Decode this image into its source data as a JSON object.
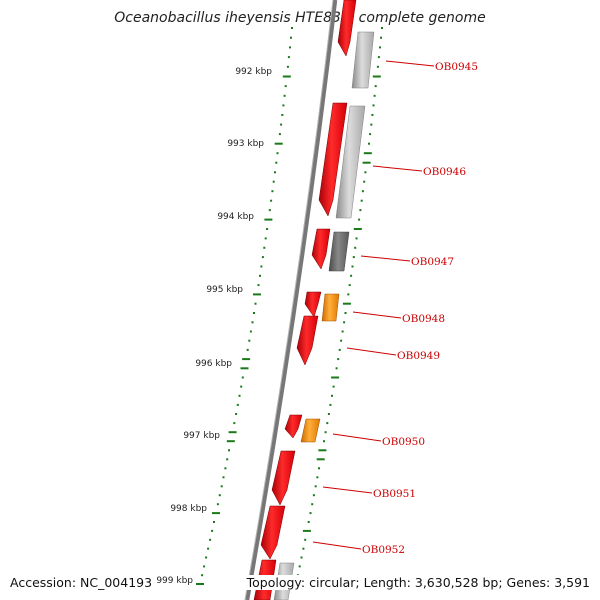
{
  "title": "Oceanobacillus iheyensis HTE831, complete genome",
  "accession": "Accession: NC_004193",
  "topology": "Topology: circular; Length: 3,630,528 bp; Genes: 3,591",
  "ticks": [
    "992 kbp",
    "993 kbp",
    "994 kbp",
    "995 kbp",
    "996 kbp",
    "997 kbp",
    "998 kbp",
    "999 kbp"
  ],
  "genes": [
    "OB0945",
    "OB0946",
    "OB0947",
    "OB0948",
    "OB0949",
    "OB0950",
    "OB0951",
    "OB0952"
  ],
  "colors": {
    "gene_red": "#e8000b",
    "gene_orange": "#ff8c00",
    "gene_gray": "#b0b0b0",
    "gene_darkgray": "#6a6a6a",
    "backbone": "#777777",
    "tick": "#1a7a1a",
    "label": "#cc0000"
  }
}
